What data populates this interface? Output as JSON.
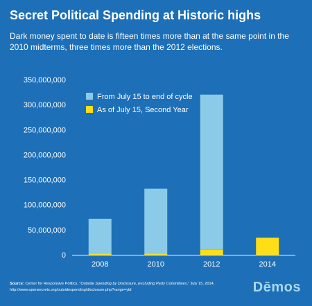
{
  "title": "Secret Political Spending at Historic highs",
  "subtitle": "Dark money spent to date is fifteen times more than at the same point in the 2010 midterms, three times more than the 2012 elections.",
  "source": {
    "label": "Source:",
    "org": "Center for Responsive Politics, \"",
    "report": "Outside Spending by Disclosure, Excluding Party Committees",
    "rest": ",\" July 15, 2014, http://www.opensecrets.org/outsidespending/disclosure.php?range=ytd"
  },
  "logo": "Dēmos",
  "colors": {
    "background": "#1d6fb8",
    "remainder": "#8bcbe8",
    "to_date": "#ffde17",
    "logo": "#a9d8f2"
  },
  "chart_data": {
    "type": "bar",
    "stacked": true,
    "categories": [
      "2008",
      "2010",
      "2012",
      "2014"
    ],
    "series": [
      {
        "name": "As of July 15, Second Year",
        "values": [
          2000000,
          2000000,
          10000000,
          34000000
        ]
      },
      {
        "name": "From July 15 to end of cycle",
        "values": [
          70000000,
          130000000,
          310000000,
          0
        ]
      }
    ],
    "yticks": [
      "0",
      "50,000,000",
      "100,000,000",
      "150,000,000",
      "200,000,000",
      "250,000,000",
      "300,000,000",
      "350,000,000"
    ],
    "ylim": [
      0,
      350000000
    ],
    "xlabel": "",
    "ylabel": "",
    "grid": false,
    "legend_position": "top-left"
  }
}
